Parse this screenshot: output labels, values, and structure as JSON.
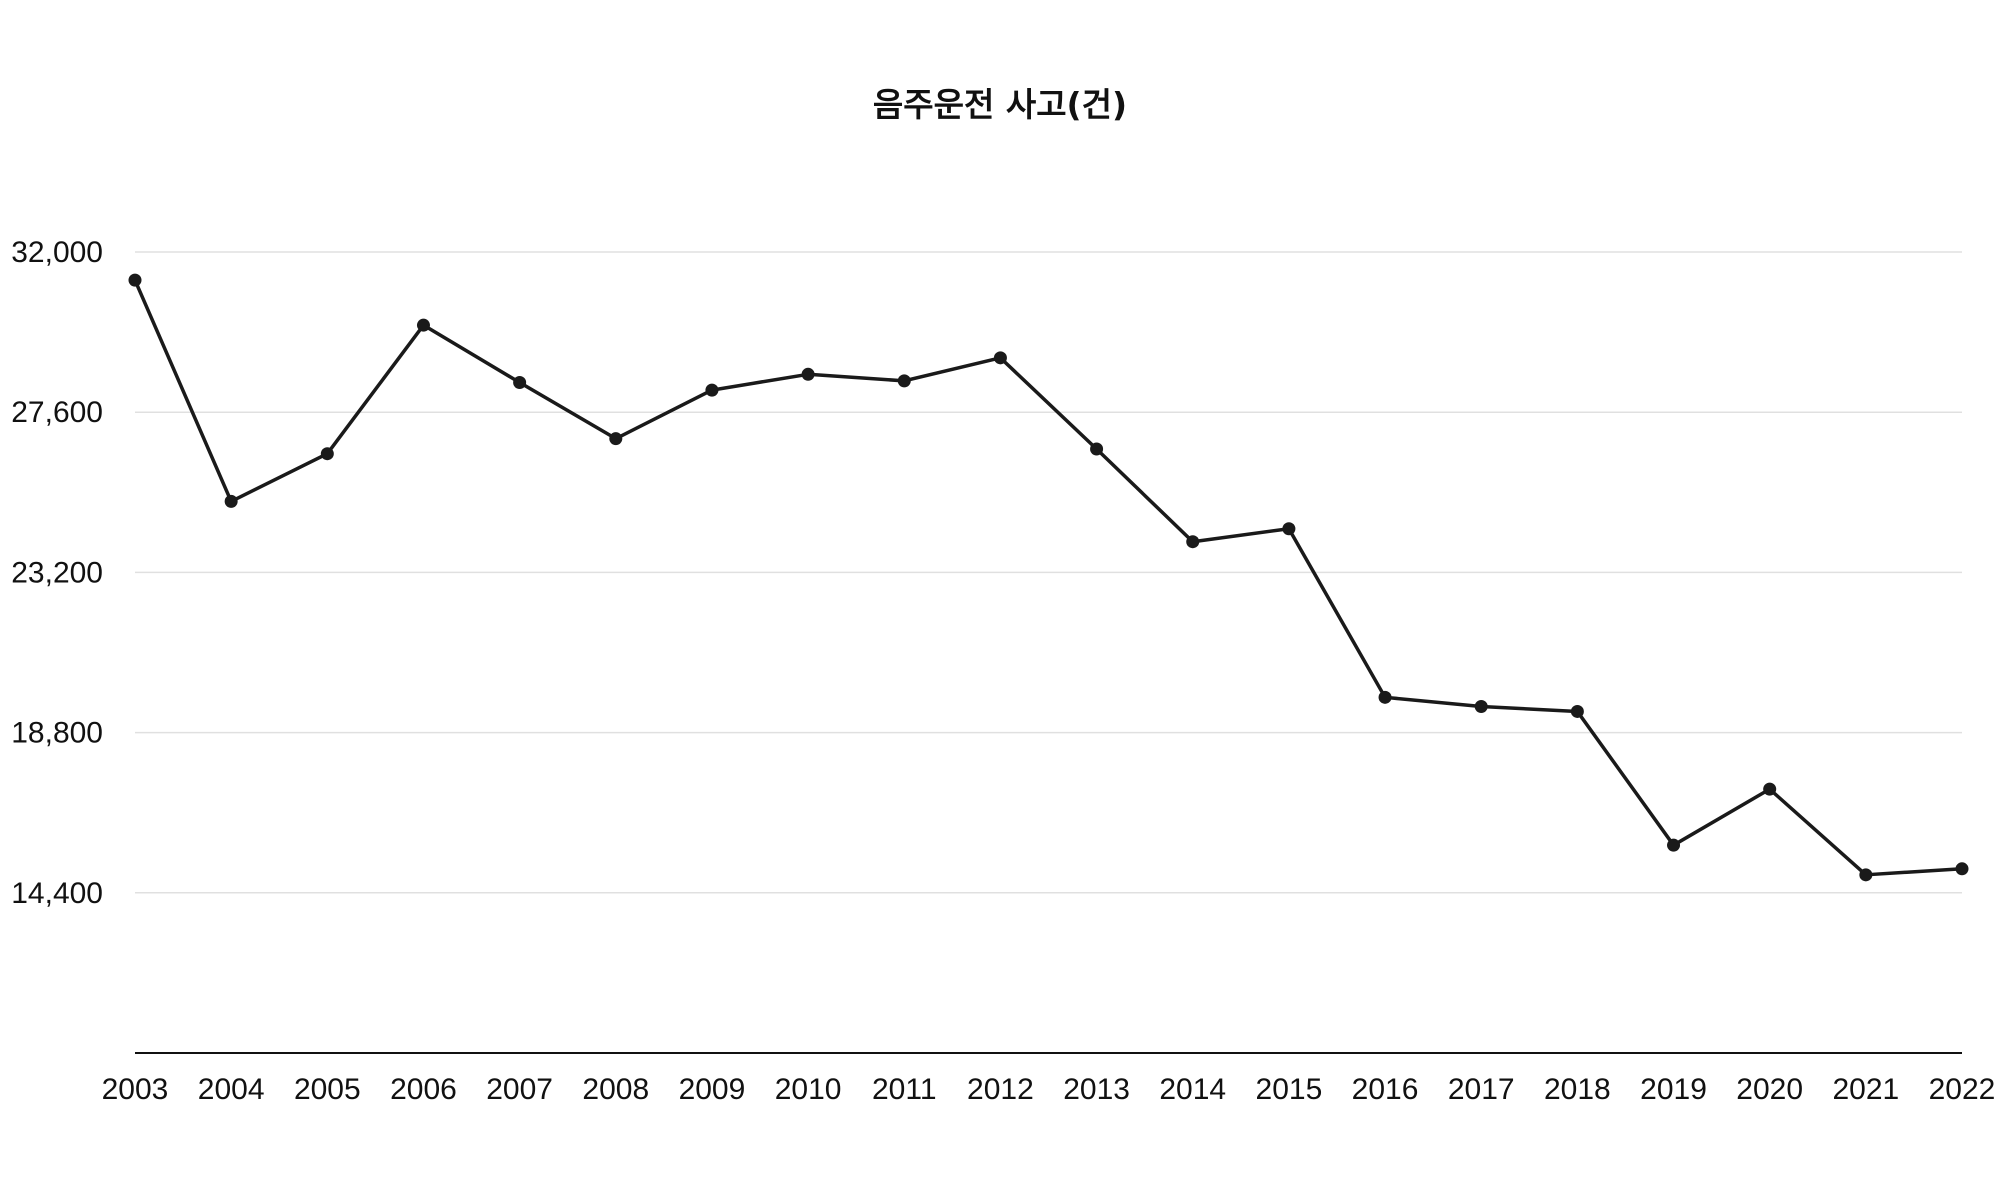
{
  "chart_data": {
    "type": "line",
    "title": "음주운전 사고(건)",
    "xlabel": "",
    "ylabel": "",
    "ylim": [
      10000,
      32000
    ],
    "yticks": [
      14400,
      18800,
      23200,
      27600,
      32000
    ],
    "ytick_labels": [
      "14,400",
      "18,800",
      "23,200",
      "27,600",
      "32,000"
    ],
    "grid": true,
    "legend": null,
    "categories": [
      "2003",
      "2004",
      "2005",
      "2006",
      "2007",
      "2008",
      "2009",
      "2010",
      "2011",
      "2012",
      "2013",
      "2014",
      "2015",
      "2016",
      "2017",
      "2018",
      "2019",
      "2020",
      "2021",
      "2022"
    ],
    "series": [
      {
        "name": "음주운전 사고(건)",
        "color": "#1a1a1a",
        "values": [
          31227,
          25150,
          26460,
          29990,
          28416,
          26873,
          28207,
          28641,
          28461,
          29093,
          26589,
          24043,
          24399,
          19769,
          19517,
          19381,
          15708,
          17247,
          14894,
          15059
        ]
      }
    ]
  },
  "colors": {
    "line": "#1a1a1a",
    "grid": "#e0e0e0",
    "axis": "#111111",
    "text": "#111111"
  }
}
